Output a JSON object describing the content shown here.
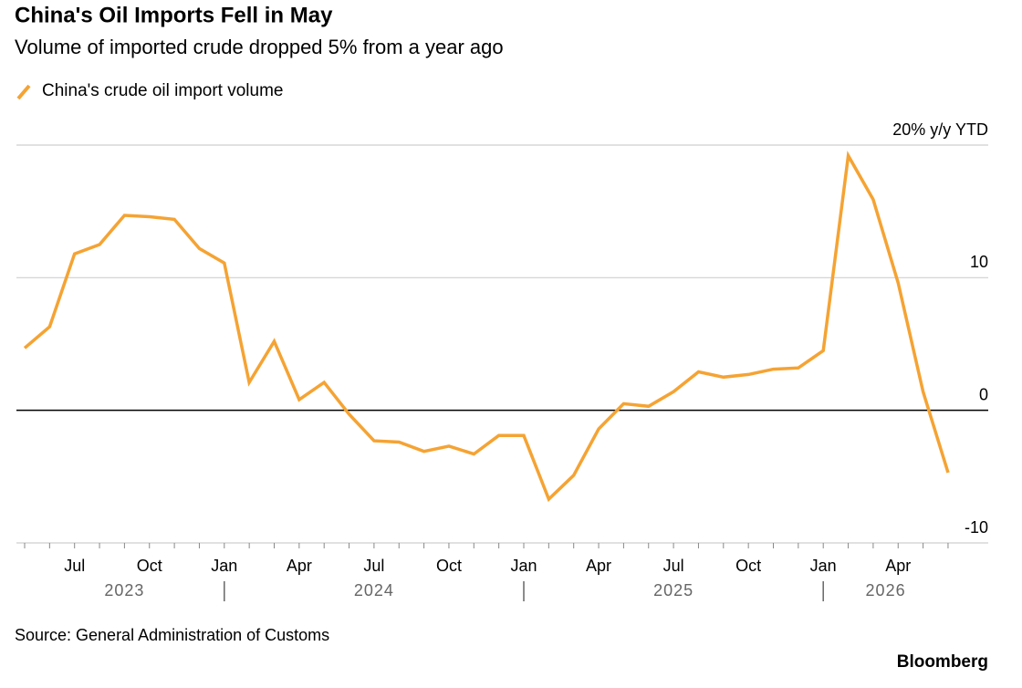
{
  "chart_data": {
    "type": "line",
    "title": "China's Oil Imports Fell in May",
    "subtitle": "Volume of imported crude dropped 5% from a year ago",
    "source": "Source: General Administration of Customs",
    "brand": "Bloomberg",
    "categories": [
      null,
      null,
      "Jul",
      null,
      null,
      "Oct",
      null,
      null,
      "Jan",
      null,
      null,
      "Apr",
      null,
      null,
      "Jul",
      null,
      null,
      "Oct",
      null,
      null,
      "Jan",
      null,
      null,
      "Apr",
      null,
      null,
      "Jul",
      null,
      null,
      "Oct",
      null,
      null,
      "Jan",
      null,
      null,
      "Apr",
      null,
      null
    ],
    "years": [
      "2023",
      "2024",
      "2025",
      "2026"
    ],
    "series": [
      {
        "name": "China's crude oil import volume",
        "color": "#f5a333",
        "values": [
          4.7,
          6.3,
          11.8,
          12.5,
          14.7,
          14.6,
          14.4,
          12.2,
          11.1,
          2.1,
          5.2,
          0.8,
          2.1,
          -0.3,
          -2.3,
          -2.4,
          -3.1,
          -2.7,
          -3.3,
          -1.9,
          -1.9,
          -6.7,
          -4.9,
          -1.4,
          0.5,
          0.3,
          1.4,
          2.9,
          2.5,
          2.7,
          3.1,
          3.2,
          4.5,
          19.2,
          15.9,
          9.6,
          1.4,
          -4.7
        ]
      }
    ],
    "ylim": [
      -10,
      20
    ],
    "yticks": [
      -10,
      0,
      10,
      {
        "value": 20,
        "label": "20% y/y YTD"
      }
    ],
    "grid": true
  }
}
